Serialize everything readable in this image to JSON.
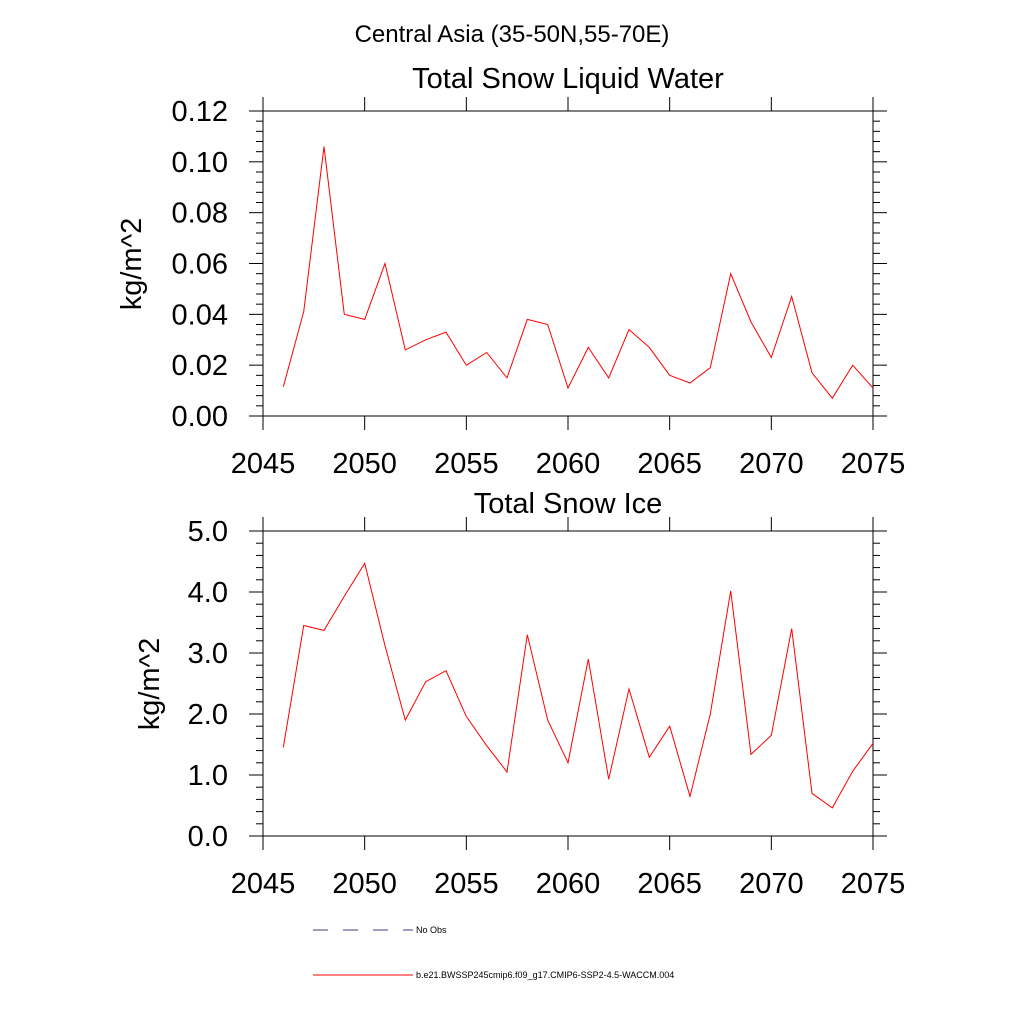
{
  "figure": {
    "title": "Central Asia (35-50N,55-70E)"
  },
  "chart_data": [
    {
      "type": "line",
      "title": "Total Snow Liquid Water",
      "xlabel": "",
      "ylabel": "kg/m^2",
      "xlim": [
        2045,
        2075
      ],
      "ylim": [
        0,
        0.12
      ],
      "x_ticks": [
        2045,
        2050,
        2055,
        2060,
        2065,
        2070,
        2075
      ],
      "x_tick_labels": [
        "2045",
        "2050",
        "2055",
        "2060",
        "2065",
        "2070",
        "2075"
      ],
      "y_ticks": [
        0,
        0.02,
        0.04,
        0.06,
        0.08,
        0.1,
        0.12
      ],
      "y_tick_labels": [
        "0.00",
        "0.02",
        "0.04",
        "0.06",
        "0.08",
        "0.10",
        "0.12"
      ],
      "grid": false,
      "series": [
        {
          "name": "b.e21.BWSSP245cmip6.f09_g17.CMIP6-SSP2-4.5-WACCM.004",
          "color": "#ff0000",
          "x": [
            2046,
            2047,
            2048,
            2049,
            2050,
            2051,
            2052,
            2053,
            2054,
            2055,
            2056,
            2057,
            2058,
            2059,
            2060,
            2061,
            2062,
            2063,
            2064,
            2065,
            2066,
            2067,
            2068,
            2069,
            2070,
            2071,
            2072,
            2073,
            2074,
            2075
          ],
          "y": [
            0.0115,
            0.041,
            0.106,
            0.04,
            0.038,
            0.06,
            0.026,
            0.03,
            0.033,
            0.02,
            0.025,
            0.015,
            0.038,
            0.036,
            0.011,
            0.027,
            0.015,
            0.034,
            0.027,
            0.016,
            0.013,
            0.019,
            0.056,
            0.037,
            0.023,
            0.047,
            0.017,
            0.007,
            0.02,
            0.011
          ]
        }
      ]
    },
    {
      "type": "line",
      "title": "Total Snow Ice",
      "xlabel": "",
      "ylabel": "kg/m^2",
      "xlim": [
        2045,
        2075
      ],
      "ylim": [
        0,
        5
      ],
      "x_ticks": [
        2045,
        2050,
        2055,
        2060,
        2065,
        2070,
        2075
      ],
      "x_tick_labels": [
        "2045",
        "2050",
        "2055",
        "2060",
        "2065",
        "2070",
        "2075"
      ],
      "y_ticks": [
        0,
        1,
        2,
        3,
        4,
        5
      ],
      "y_tick_labels": [
        "0.0",
        "1.0",
        "2.0",
        "3.0",
        "4.0",
        "5.0"
      ],
      "grid": false,
      "series": [
        {
          "name": "b.e21.BWSSP245cmip6.f09_g17.CMIP6-SSP2-4.5-WACCM.004",
          "color": "#ff0000",
          "x": [
            2046,
            2047,
            2048,
            2049,
            2050,
            2051,
            2052,
            2053,
            2054,
            2055,
            2056,
            2057,
            2058,
            2059,
            2060,
            2061,
            2062,
            2063,
            2064,
            2065,
            2066,
            2067,
            2068,
            2069,
            2070,
            2071,
            2072,
            2073,
            2074,
            2075
          ],
          "y": [
            1.45,
            3.45,
            3.37,
            3.93,
            4.47,
            3.12,
            1.9,
            2.53,
            2.71,
            1.96,
            1.48,
            1.05,
            3.3,
            1.9,
            1.2,
            2.9,
            0.93,
            2.41,
            1.29,
            1.8,
            0.65,
            2.0,
            4.02,
            1.34,
            1.65,
            3.4,
            0.7,
            0.46,
            1.06,
            1.52
          ]
        }
      ]
    }
  ],
  "legend": {
    "items": [
      {
        "label": "No Obs",
        "style": "dashed",
        "color": "#3a3a8a"
      },
      {
        "label": "b.e21.BWSSP245cmip6.f09_g17.CMIP6-SSP2-4.5-WACCM.004",
        "style": "solid",
        "color": "#ff0000"
      }
    ]
  }
}
